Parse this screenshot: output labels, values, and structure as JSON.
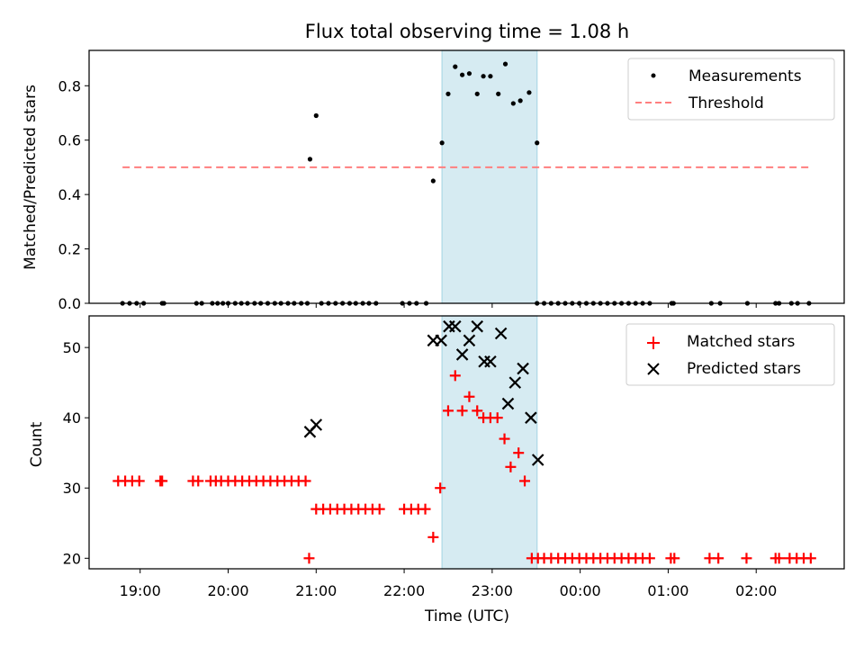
{
  "title": "Flux total observing time = 1.08 h",
  "colors": {
    "measurement": "#000000",
    "threshold": "#ff7f7f",
    "matched": "#ff0000",
    "predicted": "#000000",
    "shade": "#add8e6"
  },
  "chart_data": [
    {
      "type": "scatter",
      "panel": "top",
      "title": "Flux total observing time = 1.08 h",
      "xlabel": "",
      "ylabel": "Matched/Predicted stars",
      "x_unit": "hours since 18:00 UTC",
      "xlim": [
        0.42,
        9.0
      ],
      "ylim": [
        0.0,
        0.93
      ],
      "yticks": [
        0.0,
        0.2,
        0.4,
        0.6,
        0.8
      ],
      "ytick_labels": [
        "0.0",
        "0.2",
        "0.4",
        "0.6",
        "0.8"
      ],
      "shaded_span": [
        4.43,
        5.51
      ],
      "legend": {
        "position": "upper right",
        "entries": [
          "Measurements",
          "Threshold"
        ]
      },
      "threshold": {
        "name": "Threshold",
        "value": 0.5,
        "x_range": [
          0.8,
          8.6
        ]
      },
      "series": [
        {
          "name": "Measurements",
          "points": [
            [
              0.8,
              0
            ],
            [
              0.88,
              0
            ],
            [
              0.96,
              0
            ],
            [
              1.04,
              0
            ],
            [
              1.25,
              0
            ],
            [
              1.27,
              0
            ],
            [
              1.64,
              0
            ],
            [
              1.7,
              0
            ],
            [
              1.82,
              0
            ],
            [
              1.88,
              0
            ],
            [
              1.94,
              0
            ],
            [
              2.0,
              0
            ],
            [
              2.08,
              0
            ],
            [
              2.15,
              0
            ],
            [
              2.22,
              0
            ],
            [
              2.3,
              0
            ],
            [
              2.37,
              0
            ],
            [
              2.45,
              0
            ],
            [
              2.53,
              0
            ],
            [
              2.6,
              0
            ],
            [
              2.68,
              0
            ],
            [
              2.75,
              0
            ],
            [
              2.83,
              0
            ],
            [
              2.9,
              0
            ],
            [
              2.93,
              0.53
            ],
            [
              3.0,
              0.69
            ],
            [
              3.06,
              0
            ],
            [
              3.14,
              0
            ],
            [
              3.22,
              0
            ],
            [
              3.3,
              0
            ],
            [
              3.38,
              0
            ],
            [
              3.45,
              0
            ],
            [
              3.53,
              0
            ],
            [
              3.6,
              0
            ],
            [
              3.68,
              0
            ],
            [
              3.98,
              0
            ],
            [
              4.06,
              0
            ],
            [
              4.14,
              0
            ],
            [
              4.25,
              0
            ],
            [
              4.33,
              0.45
            ],
            [
              4.43,
              0.59
            ],
            [
              4.5,
              0.77
            ],
            [
              4.58,
              0.87
            ],
            [
              4.66,
              0.84
            ],
            [
              4.74,
              0.845
            ],
            [
              4.83,
              0.77
            ],
            [
              4.9,
              0.835
            ],
            [
              4.98,
              0.835
            ],
            [
              5.07,
              0.77
            ],
            [
              5.15,
              0.88
            ],
            [
              5.24,
              0.735
            ],
            [
              5.32,
              0.745
            ],
            [
              5.42,
              0.775
            ],
            [
              5.51,
              0.59
            ],
            [
              5.51,
              0
            ],
            [
              5.59,
              0
            ],
            [
              5.67,
              0
            ],
            [
              5.75,
              0
            ],
            [
              5.83,
              0
            ],
            [
              5.91,
              0
            ],
            [
              5.99,
              0
            ],
            [
              6.07,
              0
            ],
            [
              6.15,
              0
            ],
            [
              6.23,
              0
            ],
            [
              6.31,
              0
            ],
            [
              6.39,
              0
            ],
            [
              6.47,
              0
            ],
            [
              6.55,
              0
            ],
            [
              6.63,
              0
            ],
            [
              6.71,
              0
            ],
            [
              6.79,
              0
            ],
            [
              7.04,
              0
            ],
            [
              7.06,
              0
            ],
            [
              7.49,
              0
            ],
            [
              7.59,
              0
            ],
            [
              7.9,
              0
            ],
            [
              8.22,
              0
            ],
            [
              8.26,
              0
            ],
            [
              8.4,
              0
            ],
            [
              8.47,
              0
            ],
            [
              8.6,
              0
            ]
          ]
        }
      ]
    },
    {
      "type": "scatter",
      "panel": "bottom",
      "xlabel": "Time (UTC)",
      "ylabel": "Count",
      "x_unit": "hours since 18:00 UTC",
      "xlim": [
        0.42,
        9.0
      ],
      "ylim": [
        18.5,
        54.5
      ],
      "yticks": [
        20,
        30,
        40,
        50
      ],
      "ytick_labels": [
        "20",
        "30",
        "40",
        "50"
      ],
      "xticks": [
        1,
        2,
        3,
        4,
        5,
        6,
        7,
        8
      ],
      "xtick_labels": [
        "19:00",
        "20:00",
        "21:00",
        "22:00",
        "23:00",
        "00:00",
        "01:00",
        "02:00"
      ],
      "shaded_span": [
        4.43,
        5.51
      ],
      "legend": {
        "position": "upper right",
        "entries": [
          "Matched stars",
          "Predicted stars"
        ]
      },
      "series": [
        {
          "name": "Matched stars",
          "marker": "plus",
          "points": [
            [
              0.75,
              31
            ],
            [
              0.83,
              31
            ],
            [
              0.91,
              31
            ],
            [
              0.99,
              31
            ],
            [
              1.23,
              31
            ],
            [
              1.25,
              31
            ],
            [
              1.6,
              31
            ],
            [
              1.66,
              31
            ],
            [
              1.8,
              31
            ],
            [
              1.86,
              31
            ],
            [
              1.92,
              31
            ],
            [
              2.0,
              31
            ],
            [
              2.08,
              31
            ],
            [
              2.16,
              31
            ],
            [
              2.24,
              31
            ],
            [
              2.32,
              31
            ],
            [
              2.4,
              31
            ],
            [
              2.48,
              31
            ],
            [
              2.56,
              31
            ],
            [
              2.64,
              31
            ],
            [
              2.72,
              31
            ],
            [
              2.8,
              31
            ],
            [
              2.88,
              31
            ],
            [
              2.92,
              20
            ],
            [
              3.0,
              27
            ],
            [
              3.08,
              27
            ],
            [
              3.16,
              27
            ],
            [
              3.24,
              27
            ],
            [
              3.32,
              27
            ],
            [
              3.4,
              27
            ],
            [
              3.48,
              27
            ],
            [
              3.56,
              27
            ],
            [
              3.64,
              27
            ],
            [
              3.72,
              27
            ],
            [
              4.0,
              27
            ],
            [
              4.08,
              27
            ],
            [
              4.16,
              27
            ],
            [
              4.24,
              27
            ],
            [
              4.33,
              23
            ],
            [
              4.41,
              30
            ],
            [
              4.5,
              41
            ],
            [
              4.58,
              46
            ],
            [
              4.66,
              41
            ],
            [
              4.74,
              43
            ],
            [
              4.83,
              41
            ],
            [
              4.9,
              40
            ],
            [
              4.98,
              40
            ],
            [
              5.06,
              40
            ],
            [
              5.14,
              37
            ],
            [
              5.21,
              33
            ],
            [
              5.3,
              35
            ],
            [
              5.37,
              31
            ],
            [
              5.45,
              20
            ],
            [
              5.52,
              20
            ],
            [
              5.59,
              20
            ],
            [
              5.67,
              20
            ],
            [
              5.75,
              20
            ],
            [
              5.83,
              20
            ],
            [
              5.91,
              20
            ],
            [
              5.99,
              20
            ],
            [
              6.07,
              20
            ],
            [
              6.15,
              20
            ],
            [
              6.23,
              20
            ],
            [
              6.31,
              20
            ],
            [
              6.39,
              20
            ],
            [
              6.47,
              20
            ],
            [
              6.55,
              20
            ],
            [
              6.63,
              20
            ],
            [
              6.71,
              20
            ],
            [
              6.79,
              20
            ],
            [
              7.03,
              20
            ],
            [
              7.07,
              20
            ],
            [
              7.47,
              20
            ],
            [
              7.57,
              20
            ],
            [
              7.89,
              20
            ],
            [
              8.22,
              20
            ],
            [
              8.26,
              20
            ],
            [
              8.38,
              20
            ],
            [
              8.46,
              20
            ],
            [
              8.54,
              20
            ],
            [
              8.62,
              20
            ]
          ]
        },
        {
          "name": "Predicted stars",
          "marker": "x",
          "points": [
            [
              2.93,
              38
            ],
            [
              3.0,
              39
            ],
            [
              4.33,
              51
            ],
            [
              4.42,
              51
            ],
            [
              4.51,
              53
            ],
            [
              4.58,
              53
            ],
            [
              4.66,
              49
            ],
            [
              4.74,
              51
            ],
            [
              4.83,
              53
            ],
            [
              4.91,
              48
            ],
            [
              4.98,
              48
            ],
            [
              5.1,
              52
            ],
            [
              5.18,
              42
            ],
            [
              5.26,
              45
            ],
            [
              5.35,
              47
            ],
            [
              5.44,
              40
            ],
            [
              5.52,
              34
            ]
          ]
        }
      ]
    }
  ]
}
